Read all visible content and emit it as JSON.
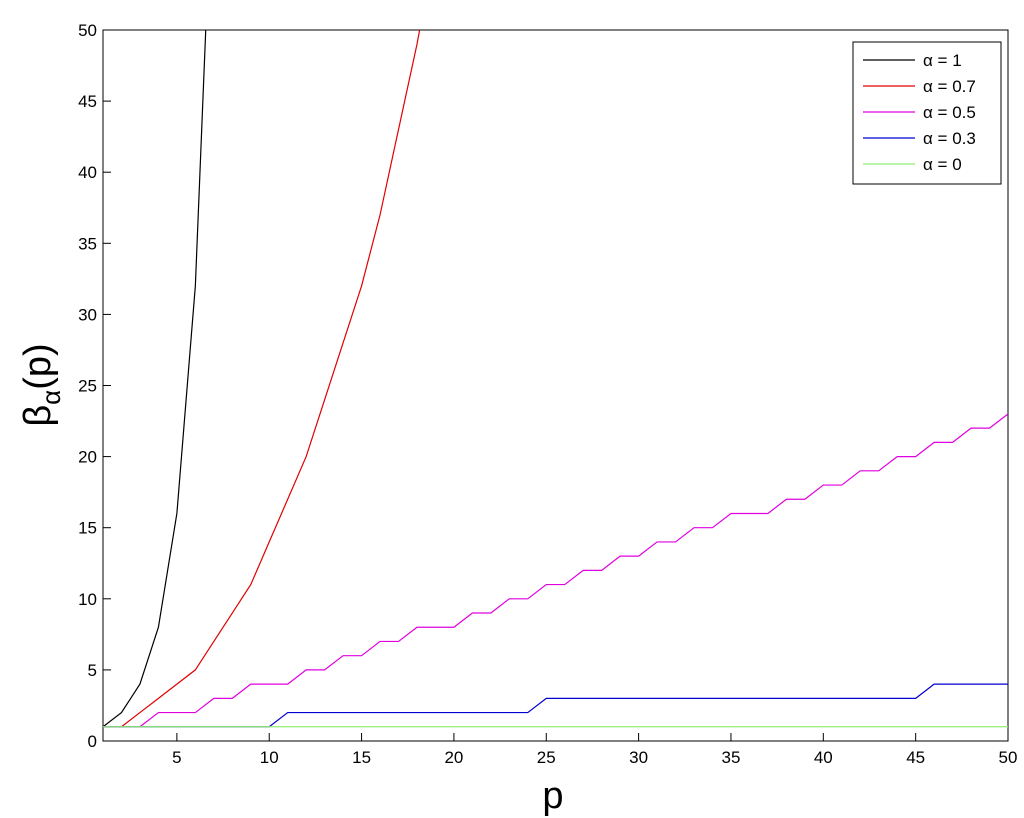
{
  "chart_data": {
    "type": "line",
    "x_label": "p",
    "y_label_main": "β",
    "y_label_sub": "α",
    "y_label_tail": "(p)",
    "x": [
      1,
      2,
      3,
      4,
      5,
      6,
      7,
      8,
      9,
      10,
      11,
      12,
      13,
      14,
      15,
      16,
      17,
      18,
      19,
      20,
      21,
      22,
      23,
      24,
      25,
      26,
      27,
      28,
      29,
      30,
      31,
      32,
      33,
      34,
      35,
      36,
      37,
      38,
      39,
      40,
      41,
      42,
      43,
      44,
      45,
      46,
      47,
      48,
      49,
      50
    ],
    "xlim": [
      1,
      50
    ],
    "xticks": [
      5,
      10,
      15,
      20,
      25,
      30,
      35,
      40,
      45,
      50
    ],
    "ylim": [
      0,
      50
    ],
    "yticks": [
      0,
      5,
      10,
      15,
      20,
      25,
      30,
      35,
      40,
      45,
      50
    ],
    "grid": false,
    "legend": "top-right",
    "series": [
      {
        "name": "α = 1",
        "color": "#000000",
        "values": [
          1,
          2,
          4,
          8,
          16,
          32,
          64,
          null,
          null,
          null,
          null,
          null,
          null,
          null,
          null,
          null,
          null,
          null,
          null,
          null,
          null,
          null,
          null,
          null,
          null,
          null,
          null,
          null,
          null,
          null,
          null,
          null,
          null,
          null,
          null,
          null,
          null,
          null,
          null,
          null,
          null,
          null,
          null,
          null,
          null,
          null,
          null,
          null,
          null,
          null
        ]
      },
      {
        "name": "α = 0.7",
        "color": "#e00000",
        "values": [
          1,
          1,
          2,
          3,
          4,
          5,
          7,
          9,
          11,
          14,
          17,
          20,
          24,
          28,
          32,
          37,
          43,
          49,
          56,
          null,
          null,
          null,
          null,
          null,
          null,
          null,
          null,
          null,
          null,
          null,
          null,
          null,
          null,
          null,
          null,
          null,
          null,
          null,
          null,
          null,
          null,
          null,
          null,
          null,
          null,
          null,
          null,
          null,
          null,
          null
        ]
      },
      {
        "name": "α = 0.5",
        "color": "#e000e0",
        "values": [
          1,
          1,
          1,
          2,
          2,
          2,
          3,
          3,
          4,
          4,
          4,
          5,
          5,
          6,
          6,
          7,
          7,
          8,
          8,
          8,
          9,
          9,
          10,
          10,
          11,
          11,
          12,
          12,
          13,
          13,
          14,
          14,
          15,
          15,
          16,
          16,
          16,
          17,
          17,
          18,
          18,
          19,
          19,
          20,
          20,
          21,
          21,
          22,
          22,
          23
        ]
      },
      {
        "name": "α = 0.3",
        "color": "#0000d0",
        "values": [
          1,
          1,
          1,
          1,
          1,
          1,
          1,
          1,
          1,
          1,
          2,
          2,
          2,
          2,
          2,
          2,
          2,
          2,
          2,
          2,
          2,
          2,
          2,
          2,
          3,
          3,
          3,
          3,
          3,
          3,
          3,
          3,
          3,
          3,
          3,
          3,
          3,
          3,
          3,
          3,
          3,
          3,
          3,
          3,
          3,
          4,
          4,
          4,
          4,
          4
        ]
      },
      {
        "name": "α = 0",
        "color": "#90ee70",
        "values": [
          1,
          1,
          1,
          1,
          1,
          1,
          1,
          1,
          1,
          1,
          1,
          1,
          1,
          1,
          1,
          1,
          1,
          1,
          1,
          1,
          1,
          1,
          1,
          1,
          1,
          1,
          1,
          1,
          1,
          1,
          1,
          1,
          1,
          1,
          1,
          1,
          1,
          1,
          1,
          1,
          1,
          1,
          1,
          1,
          1,
          1,
          1,
          1,
          1,
          1
        ]
      }
    ]
  }
}
